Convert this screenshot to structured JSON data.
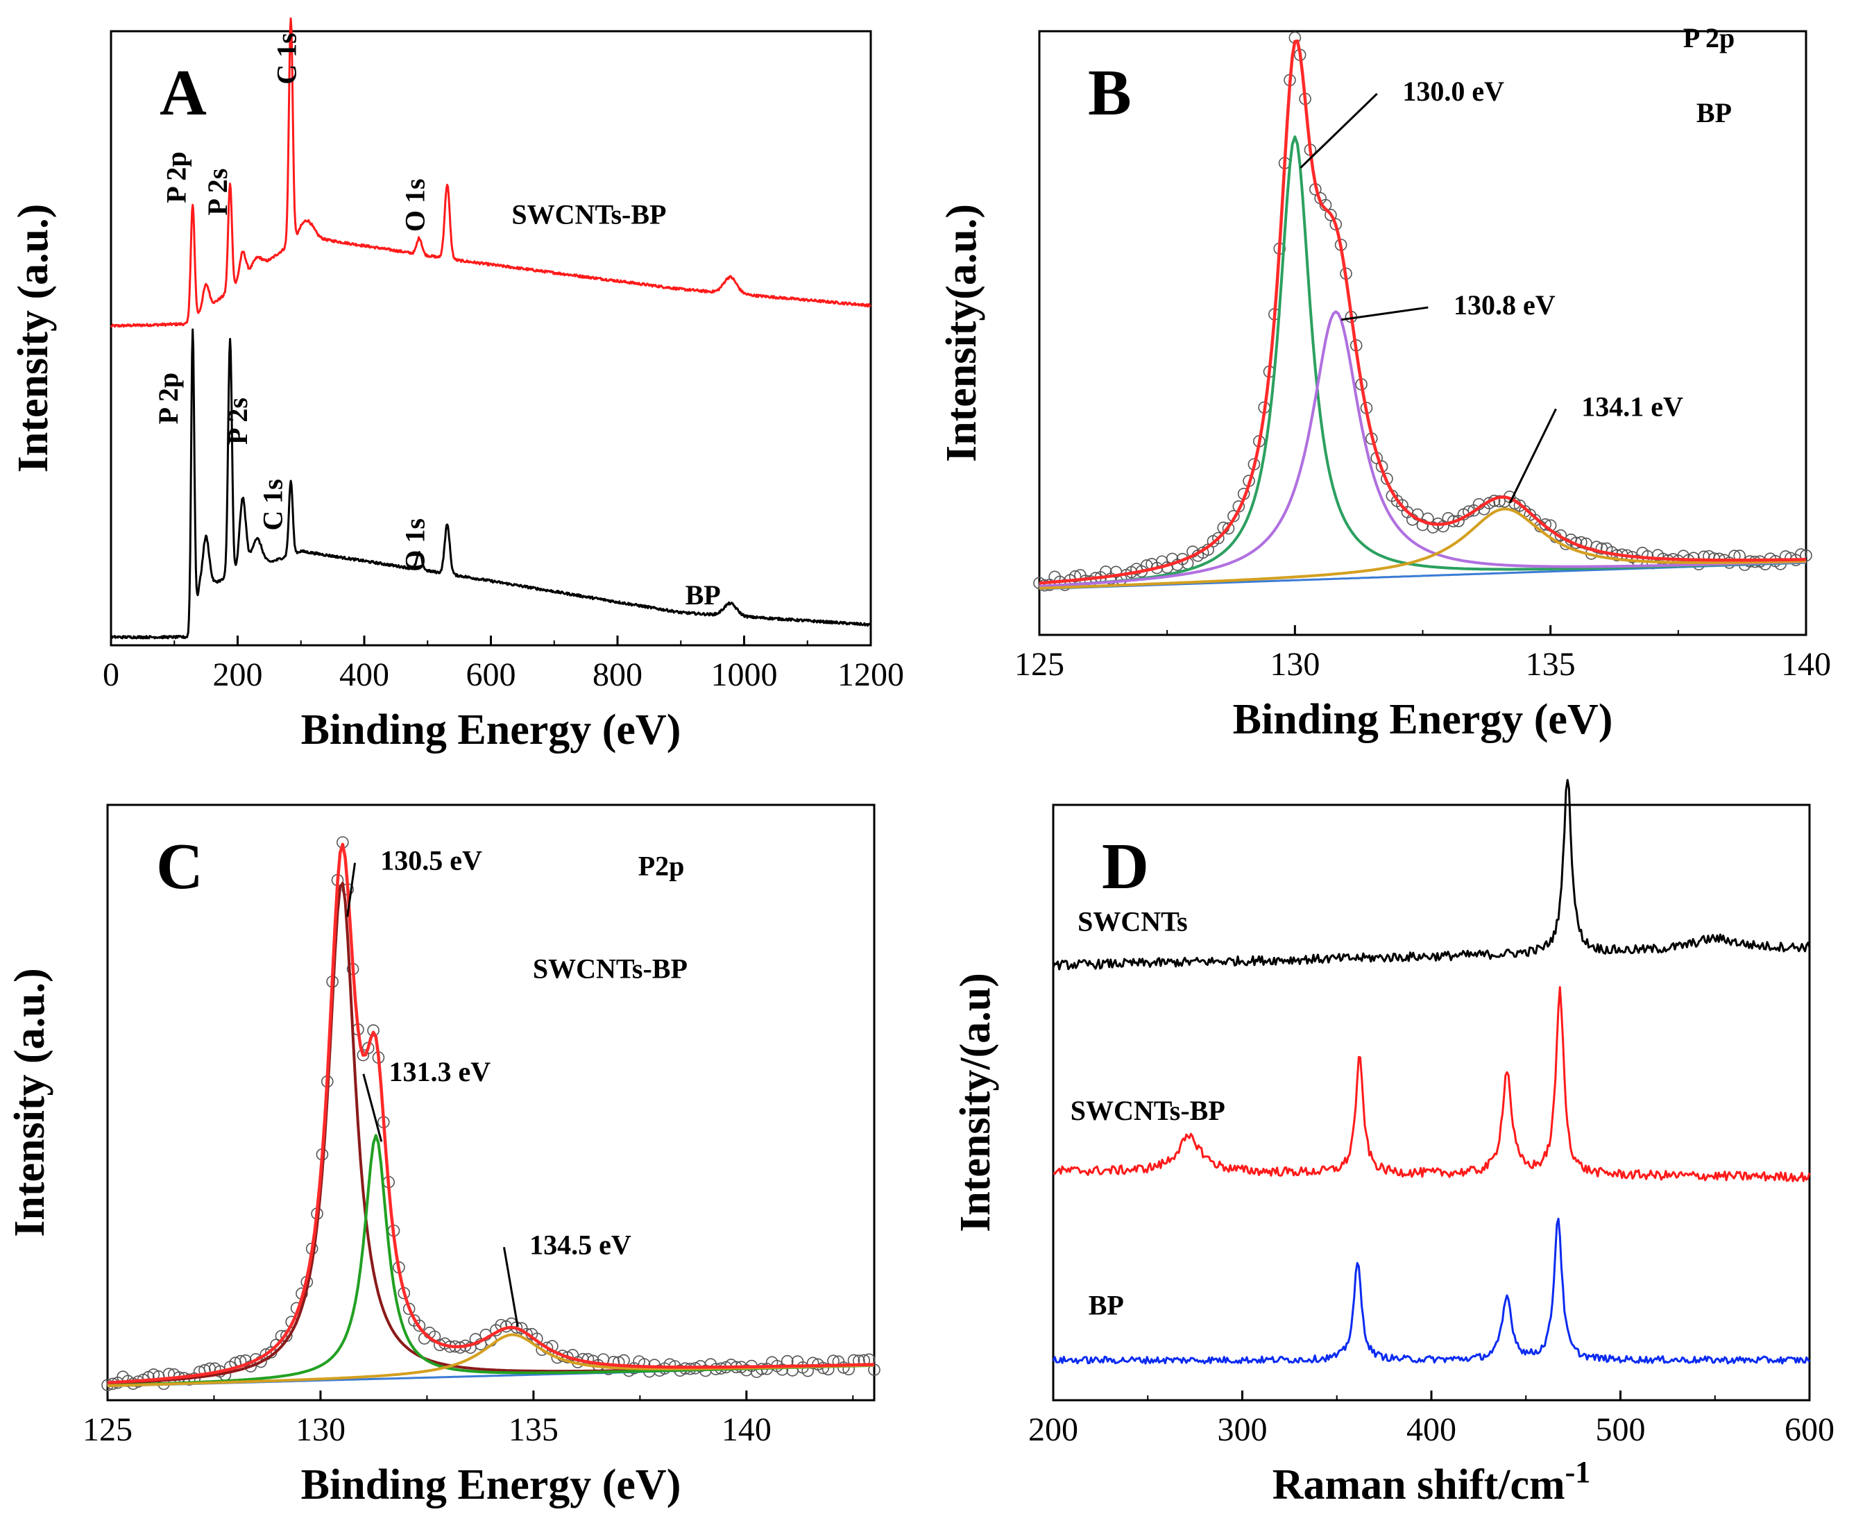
{
  "chart_data": [
    {
      "panel": "A",
      "type": "line",
      "xlabel": "Binding Energy (eV)",
      "ylabel": "Intensity (a.u.)",
      "xlim": [
        0,
        1200
      ],
      "xticks": [
        0,
        200,
        400,
        600,
        800,
        1000,
        1200
      ],
      "series": [
        {
          "name": "SWCNTs-BP",
          "color": "#ff1a1a",
          "baseline": [
            [
              0,
              0.36
            ],
            [
              120,
              0.365
            ],
            [
              300,
              0.58
            ],
            [
              550,
              0.52
            ],
            [
              900,
              0.45
            ],
            [
              1200,
              0.41
            ]
          ],
          "peaks": [
            [
              129,
              0.28,
              3
            ],
            [
              150,
              0.06,
              5
            ],
            [
              188,
              0.26,
              3
            ],
            [
              208,
              0.07,
              5
            ],
            [
              230,
              0.03,
              8
            ],
            [
              284,
              0.55,
              3
            ],
            [
              310,
              0.04,
              10
            ],
            [
              487,
              0.04,
              4
            ],
            [
              531,
              0.18,
              4
            ],
            [
              978,
              0.04,
              10
            ]
          ]
        },
        {
          "name": "BP",
          "color": "#000000",
          "baseline": [
            [
              0,
              0.0
            ],
            [
              125,
              0.0
            ],
            [
              140,
              0.12
            ],
            [
              300,
              0.21
            ],
            [
              550,
              0.15
            ],
            [
              900,
              0.06
            ],
            [
              1200,
              0.03
            ]
          ],
          "peaks": [
            [
              129,
              0.72,
              2.5
            ],
            [
              150,
              0.12,
              5
            ],
            [
              188,
              0.58,
              3
            ],
            [
              208,
              0.18,
              5
            ],
            [
              230,
              0.07,
              8
            ],
            [
              284,
              0.18,
              3
            ],
            [
              487,
              0.04,
              4
            ],
            [
              531,
              0.12,
              4
            ],
            [
              978,
              0.03,
              10
            ]
          ]
        }
      ],
      "annotations": [
        {
          "text": "P 2p",
          "x": 118,
          "y": 0.66,
          "rotate": true
        },
        {
          "text": "P 2s",
          "x": 183,
          "y": 0.63,
          "rotate": true
        },
        {
          "text": "C 1s",
          "x": 292,
          "y": 0.95,
          "rotate": true
        },
        {
          "text": "O 1s",
          "x": 495,
          "y": 0.59,
          "rotate": true
        },
        {
          "text": "SWCNTs-BP",
          "x": 755,
          "y": 0.61
        },
        {
          "text": "P 2p",
          "x": 105,
          "y": 0.12,
          "rotate": true
        },
        {
          "text": "P 2s",
          "x": 215,
          "y": 0.07,
          "rotate": true
        },
        {
          "text": "C 1s",
          "x": 270,
          "y": -0.14,
          "rotate": true
        },
        {
          "text": "O 1s",
          "x": 495,
          "y": -0.24,
          "rotate": true
        },
        {
          "text": "BP",
          "x": 935,
          "y": -0.32
        }
      ],
      "letter": "A"
    },
    {
      "panel": "B",
      "type": "line",
      "xlabel": "Binding Energy (eV)",
      "ylabel": "Intensity(a.u.)",
      "xlim": [
        125,
        140
      ],
      "xticks": [
        125,
        130,
        135,
        140
      ],
      "background": [
        [
          125,
          0.006
        ],
        [
          140,
          0.055
        ]
      ],
      "components": [
        {
          "center": 130.0,
          "height": 0.83,
          "width": 0.38,
          "color": "#2ca060"
        },
        {
          "center": 130.8,
          "height": 0.5,
          "width": 0.58,
          "color": "#b070e0"
        },
        {
          "center": 134.1,
          "height": 0.12,
          "width": 0.95,
          "color": "#d4a020"
        }
      ],
      "envelope_color": "#ff2a2a",
      "background_color": "#3a7bd5",
      "raw_points": "circles",
      "annotations": [
        {
          "text": "130.0 eV",
          "x": 133.1,
          "y": 0.92
        },
        {
          "text": "130.8 eV",
          "x": 134.1,
          "y": 0.52
        },
        {
          "text": "134.1 eV",
          "x": 136.6,
          "y": 0.33
        },
        {
          "text": "P 2p",
          "x": 138.1,
          "y": 1.02
        },
        {
          "text": "BP",
          "x": 138.2,
          "y": 0.88
        }
      ],
      "letter": "B"
    },
    {
      "panel": "C",
      "type": "line",
      "xlabel": "Binding Energy (eV)",
      "ylabel": "Intensity (a.u.)",
      "xlim": [
        125,
        143
      ],
      "xticks": [
        125,
        130,
        135,
        140
      ],
      "background": [
        [
          125,
          0.006
        ],
        [
          143,
          0.044
        ]
      ],
      "components": [
        {
          "center": 130.5,
          "height": 0.92,
          "width": 0.39,
          "color": "#8b1a1a"
        },
        {
          "center": 131.3,
          "height": 0.45,
          "width": 0.33,
          "color": "#22a022"
        },
        {
          "center": 134.5,
          "height": 0.075,
          "width": 0.88,
          "color": "#d4a020"
        }
      ],
      "envelope_color": "#ff2a2a",
      "background_color": "#3a7bd5",
      "raw_points": "circles",
      "annotations": [
        {
          "text": "130.5 eV",
          "x": 132.6,
          "y": 0.96
        },
        {
          "text": "131.3 eV",
          "x": 132.8,
          "y": 0.57
        },
        {
          "text": "134.5 eV",
          "x": 136.1,
          "y": 0.25
        },
        {
          "text": "P2p",
          "x": 138.0,
          "y": 0.95
        },
        {
          "text": "SWCNTs-BP",
          "x": 136.8,
          "y": 0.76
        }
      ],
      "letter": "C"
    },
    {
      "panel": "D",
      "type": "line",
      "xlabel": "Raman shift/cm",
      "xlabel_sup": "-1",
      "ylabel": "Intensity/(a.u)",
      "xlim": [
        200,
        600
      ],
      "xticks": [
        200,
        300,
        400,
        500,
        600
      ],
      "series": [
        {
          "name": "SWCNTs",
          "color": "#000000",
          "offset": 0.74,
          "slope": 0.03,
          "peaks": [
            [
              472,
              0.31,
              2.5
            ],
            [
              550,
              0.02,
              15
            ]
          ],
          "noise": 0.008
        },
        {
          "name": "SWCNTs-BP",
          "color": "#ff1a1a",
          "offset": 0.38,
          "slope": -0.01,
          "peaks": [
            [
              272,
              0.06,
              8
            ],
            [
              362,
              0.2,
              2.5
            ],
            [
              440,
              0.18,
              3
            ],
            [
              468,
              0.32,
              2.5
            ]
          ],
          "noise": 0.008
        },
        {
          "name": "BP",
          "color": "#0b2bf0",
          "offset": 0.05,
          "slope": 0.0,
          "peaks": [
            [
              361,
              0.17,
              2.5
            ],
            [
              440,
              0.11,
              3
            ],
            [
              467,
              0.25,
              2.5
            ]
          ],
          "noise": 0.006
        }
      ],
      "annotations": [
        {
          "text": "SWCNTs",
          "x": 242,
          "y": 0.8
        },
        {
          "text": "SWCNTs-BP",
          "x": 250,
          "y": 0.47
        },
        {
          "text": "BP",
          "x": 228,
          "y": 0.13
        }
      ],
      "letter": "D"
    }
  ]
}
